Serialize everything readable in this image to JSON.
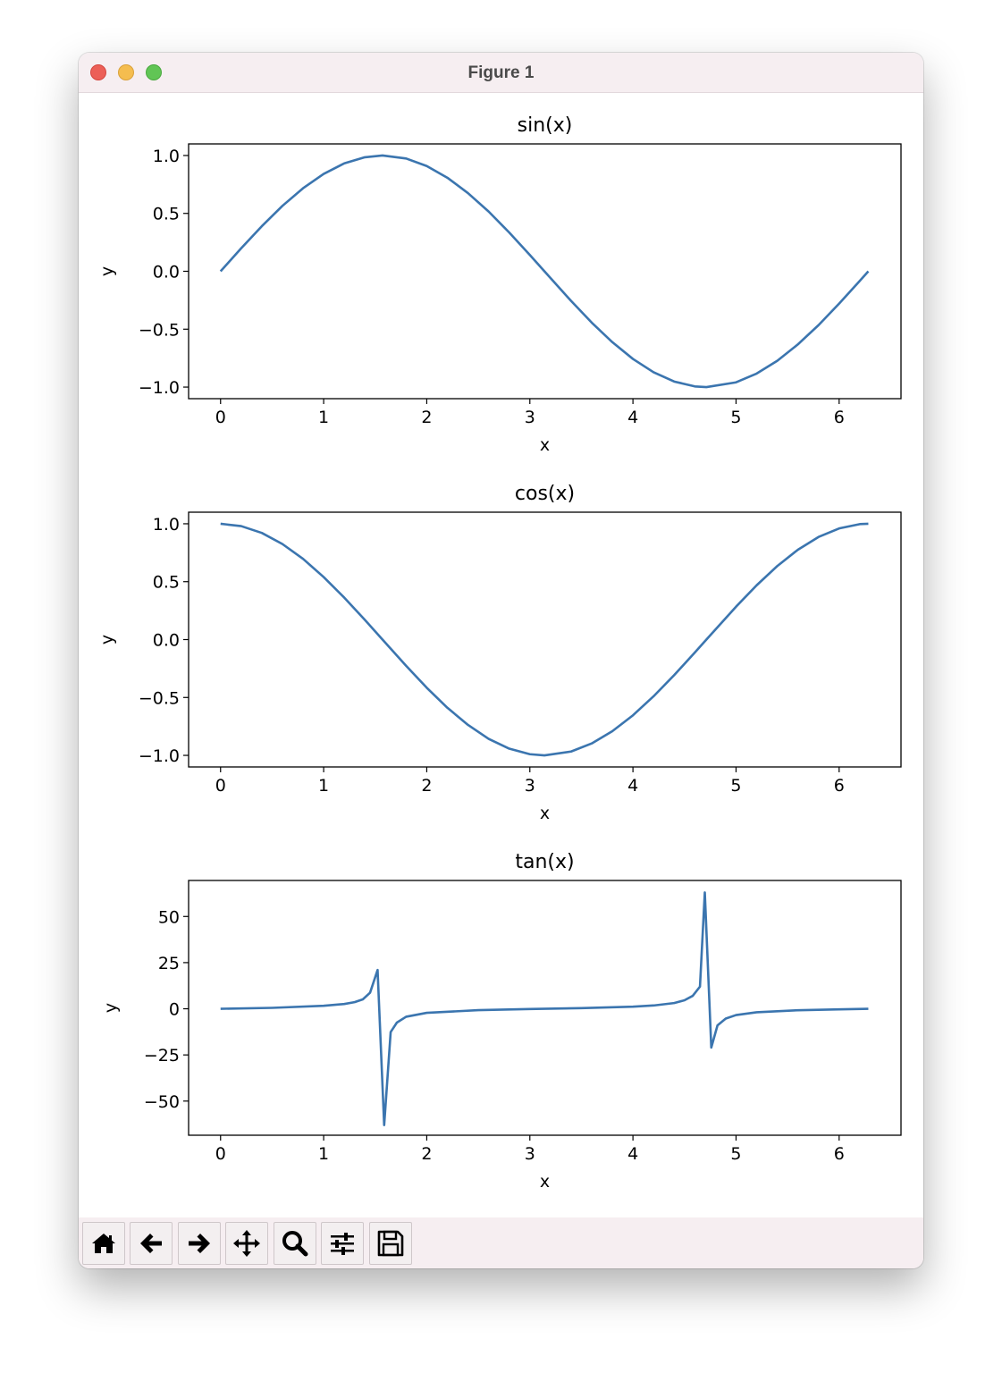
{
  "window": {
    "title": "Figure 1"
  },
  "toolbar": {
    "buttons": [
      {
        "icon": "home-icon"
      },
      {
        "icon": "back-arrow-icon"
      },
      {
        "icon": "forward-arrow-icon"
      },
      {
        "icon": "pan-move-icon"
      },
      {
        "icon": "zoom-magnifier-icon"
      },
      {
        "icon": "configure-subplots-icon"
      },
      {
        "icon": "save-floppy-icon"
      }
    ]
  },
  "colors": {
    "line": "#3b75af",
    "titlebar": "#f6eef1"
  },
  "chart_data": [
    {
      "type": "line",
      "title": "sin(x)",
      "xlabel": "x",
      "ylabel": "y",
      "xlim": [
        -0.31,
        6.6
      ],
      "ylim": [
        -1.1,
        1.1
      ],
      "xticks": [
        0,
        1,
        2,
        3,
        4,
        5,
        6
      ],
      "yticks": [
        1.0,
        0.5,
        0.0,
        -0.5,
        -1.0
      ],
      "ytick_labels": [
        "1.0",
        "0.5",
        "0.0",
        "−0.5",
        "−1.0"
      ],
      "series": [
        {
          "x": [
            0,
            0.2,
            0.4,
            0.6,
            0.8,
            1.0,
            1.2,
            1.4,
            1.5708,
            1.8,
            2.0,
            2.2,
            2.4,
            2.6,
            2.8,
            3.0,
            3.1416,
            3.4,
            3.6,
            3.8,
            4.0,
            4.2,
            4.4,
            4.6,
            4.7124,
            5.0,
            5.2,
            5.4,
            5.6,
            5.8,
            6.0,
            6.2,
            6.2832
          ],
          "y": [
            0,
            0.199,
            0.389,
            0.565,
            0.717,
            0.841,
            0.932,
            0.985,
            1.0,
            0.974,
            0.909,
            0.808,
            0.675,
            0.516,
            0.335,
            0.141,
            0,
            -0.256,
            -0.443,
            -0.612,
            -0.757,
            -0.872,
            -0.952,
            -0.994,
            -1.0,
            -0.959,
            -0.883,
            -0.773,
            -0.631,
            -0.465,
            -0.279,
            -0.083,
            0
          ]
        }
      ]
    },
    {
      "type": "line",
      "title": "cos(x)",
      "xlabel": "x",
      "ylabel": "y",
      "xlim": [
        -0.31,
        6.6
      ],
      "ylim": [
        -1.1,
        1.1
      ],
      "xticks": [
        0,
        1,
        2,
        3,
        4,
        5,
        6
      ],
      "yticks": [
        1.0,
        0.5,
        0.0,
        -0.5,
        -1.0
      ],
      "ytick_labels": [
        "1.0",
        "0.5",
        "0.0",
        "−0.5",
        "−1.0"
      ],
      "series": [
        {
          "x": [
            0,
            0.2,
            0.4,
            0.6,
            0.8,
            1.0,
            1.2,
            1.4,
            1.5708,
            1.8,
            2.0,
            2.2,
            2.4,
            2.6,
            2.8,
            3.0,
            3.1416,
            3.4,
            3.6,
            3.8,
            4.0,
            4.2,
            4.4,
            4.6,
            4.7124,
            5.0,
            5.2,
            5.4,
            5.6,
            5.8,
            6.0,
            6.2,
            6.2832
          ],
          "y": [
            1,
            0.98,
            0.921,
            0.825,
            0.697,
            0.54,
            0.362,
            0.17,
            0,
            -0.227,
            -0.416,
            -0.589,
            -0.737,
            -0.857,
            -0.942,
            -0.99,
            -1.0,
            -0.967,
            -0.897,
            -0.791,
            -0.654,
            -0.49,
            -0.307,
            -0.112,
            0,
            0.284,
            0.469,
            0.635,
            0.776,
            0.886,
            0.96,
            0.997,
            1
          ]
        }
      ]
    },
    {
      "type": "line",
      "title": "tan(x)",
      "xlabel": "x",
      "ylabel": "y",
      "xlim": [
        -0.31,
        6.6
      ],
      "ylim": [
        -68.5,
        69.5
      ],
      "xticks": [
        0,
        1,
        2,
        3,
        4,
        5,
        6
      ],
      "yticks": [
        50,
        25,
        0,
        -25,
        -50
      ],
      "ytick_labels": [
        "50",
        "25",
        "0",
        "−25",
        "−50"
      ],
      "series": [
        {
          "x": [
            0,
            0.5,
            1.0,
            1.2,
            1.3,
            1.38,
            1.45,
            1.523,
            1.587,
            1.65,
            1.71,
            1.8,
            2.0,
            2.5,
            3.0,
            3.5,
            4.0,
            4.2,
            4.4,
            4.5,
            4.58,
            4.65,
            4.697,
            4.76,
            4.82,
            4.9,
            5.0,
            5.2,
            5.6,
            6.0,
            6.2832
          ],
          "y": [
            0,
            0.5,
            1.6,
            2.6,
            3.6,
            5.1,
            8.7,
            21,
            -63,
            -12.6,
            -7.5,
            -4.3,
            -2.2,
            -0.75,
            -0.14,
            0.37,
            1.16,
            1.78,
            3.1,
            4.6,
            7.0,
            12,
            63,
            -21,
            -9.0,
            -5.3,
            -3.4,
            -1.9,
            -0.8,
            -0.3,
            0
          ]
        }
      ]
    }
  ]
}
